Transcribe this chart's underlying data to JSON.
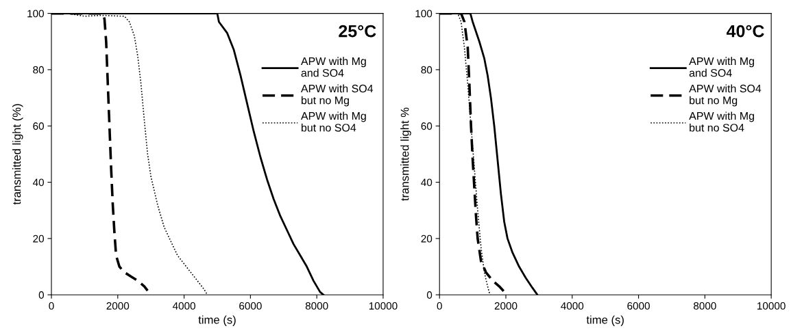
{
  "chart_data": [
    {
      "type": "line",
      "title": "25°C",
      "xlabel": "time (s)",
      "ylabel": "transmitted light (%)",
      "xlim": [
        0,
        10000
      ],
      "ylim": [
        0,
        100
      ],
      "xticks": [
        0,
        2000,
        4000,
        6000,
        8000,
        10000
      ],
      "yticks": [
        0,
        20,
        40,
        60,
        80,
        100
      ],
      "grid": false,
      "legend": "top right",
      "series": [
        {
          "name": "APW with Mg\nand SO4",
          "color": "#000000",
          "line_style": "solid",
          "x": [
            0,
            5000,
            5050,
            5300,
            5500,
            5700,
            5900,
            6100,
            6300,
            6500,
            6700,
            6900,
            7100,
            7300,
            7500,
            7700,
            7900,
            8100,
            8200
          ],
          "values": [
            100,
            100,
            97,
            93,
            87,
            78,
            68,
            58,
            49,
            41,
            34,
            28,
            23,
            18,
            14,
            10,
            5,
            1,
            0
          ]
        },
        {
          "name": "APW with SO4\nbut no Mg",
          "color": "#000000",
          "line_style": "dashed",
          "x": [
            0,
            1550,
            1600,
            1650,
            1700,
            1750,
            1800,
            1850,
            1900,
            1950,
            2050,
            2200,
            2400,
            2600,
            2800,
            2900
          ],
          "values": [
            100,
            100,
            98,
            90,
            75,
            60,
            45,
            32,
            22,
            14,
            10,
            8,
            6.5,
            5,
            3,
            1.5
          ]
        },
        {
          "name": "APW with Mg\nbut no SO4",
          "color": "#000000",
          "line_style": "dotted",
          "x": [
            0,
            500,
            1000,
            1500,
            2200,
            2350,
            2500,
            2600,
            2700,
            2800,
            2900,
            3000,
            3200,
            3400,
            3600,
            3800,
            4000,
            4200,
            4400,
            4600,
            4700
          ],
          "values": [
            100,
            100,
            99,
            99.3,
            99,
            97,
            92,
            85,
            75,
            62,
            50,
            42,
            32,
            24,
            19,
            14,
            11,
            8,
            5,
            2,
            0
          ]
        }
      ]
    },
    {
      "type": "line",
      "title": "40°C",
      "xlabel": "time (s)",
      "ylabel": "transmitted light %",
      "xlim": [
        0,
        10000
      ],
      "ylim": [
        0,
        100
      ],
      "xticks": [
        0,
        2000,
        4000,
        6000,
        8000,
        10000
      ],
      "yticks": [
        0,
        20,
        40,
        60,
        80,
        100
      ],
      "grid": false,
      "legend": "top right",
      "series": [
        {
          "name": "APW with Mg\nand SO4",
          "color": "#000000",
          "line_style": "solid",
          "x": [
            0,
            930,
            1000,
            1200,
            1350,
            1450,
            1550,
            1650,
            1750,
            1850,
            1950,
            2050,
            2200,
            2400,
            2600,
            2800,
            2950
          ],
          "values": [
            100,
            100,
            97,
            90,
            84,
            78,
            70,
            60,
            48,
            36,
            26,
            20,
            15,
            10,
            6,
            2.5,
            0
          ]
        },
        {
          "name": "APW with SO4\nbut no Mg",
          "color": "#000000",
          "line_style": "dashed",
          "x": [
            0,
            650,
            750,
            850,
            900,
            950,
            1000,
            1050,
            1100,
            1150,
            1250,
            1400,
            1600,
            1800,
            2000
          ],
          "values": [
            100,
            100,
            97,
            88,
            75,
            60,
            48,
            38,
            28,
            20,
            12,
            8,
            5,
            3,
            0.5
          ]
        },
        {
          "name": "APW with Mg\nbut no SO4",
          "color": "#000000",
          "line_style": "dotted",
          "x": [
            0,
            550,
            650,
            750,
            850,
            950,
            1050,
            1150,
            1250,
            1350,
            1450,
            1520
          ],
          "values": [
            100,
            100,
            97,
            88,
            75,
            60,
            45,
            30,
            17,
            8,
            3,
            0
          ]
        }
      ]
    }
  ]
}
